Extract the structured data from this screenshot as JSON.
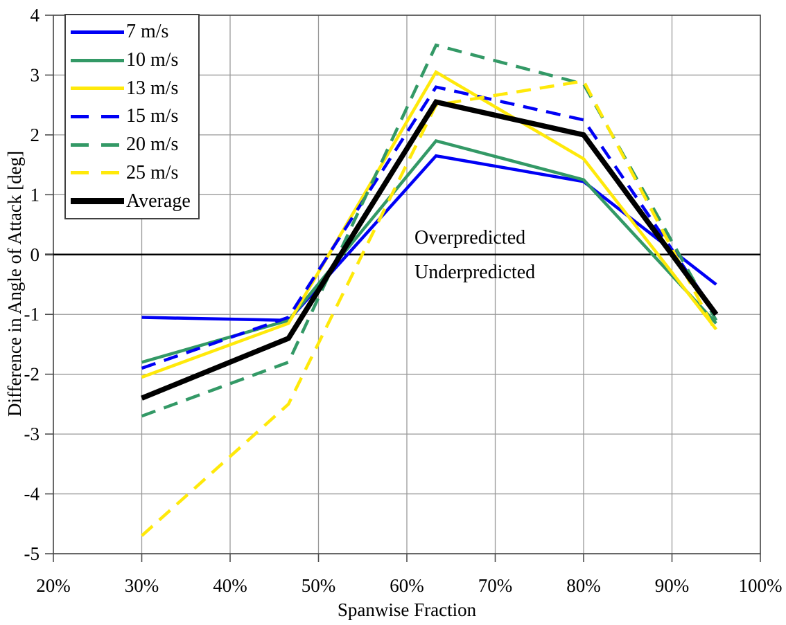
{
  "chart_data": {
    "type": "line",
    "title": "",
    "xlabel": "Spanwise Fraction",
    "ylabel": "Difference in Angle of Attack [deg]",
    "xlim": [
      20,
      100
    ],
    "ylim": [
      -5,
      4
    ],
    "grid": true,
    "legend_position": "top-left",
    "x": [
      30,
      46.6,
      63.3,
      80,
      95
    ],
    "x_ticks": [
      {
        "v": 20,
        "label": "20%"
      },
      {
        "v": 30,
        "label": "30%"
      },
      {
        "v": 40,
        "label": "40%"
      },
      {
        "v": 50,
        "label": "50%"
      },
      {
        "v": 60,
        "label": "60%"
      },
      {
        "v": 70,
        "label": "70%"
      },
      {
        "v": 80,
        "label": "80%"
      },
      {
        "v": 90,
        "label": "90%"
      },
      {
        "v": 100,
        "label": "100%"
      }
    ],
    "y_ticks": [
      {
        "v": 4,
        "label": "4"
      },
      {
        "v": 3,
        "label": "3"
      },
      {
        "v": 2,
        "label": "2"
      },
      {
        "v": 1,
        "label": "1"
      },
      {
        "v": 0,
        "label": "0"
      },
      {
        "v": -1,
        "label": "-1"
      },
      {
        "v": -2,
        "label": "-2"
      },
      {
        "v": -3,
        "label": "-3"
      },
      {
        "v": -4,
        "label": "-4"
      },
      {
        "v": -5,
        "label": "-5"
      }
    ],
    "series": [
      {
        "name": "7 m/s",
        "color": "#0000F5",
        "dash": "solid",
        "width": 4.5,
        "values": [
          -1.05,
          -1.1,
          1.65,
          1.22,
          -0.5
        ]
      },
      {
        "name": "10 m/s",
        "color": "#339966",
        "dash": "solid",
        "width": 4.5,
        "values": [
          -1.8,
          -1.1,
          1.9,
          1.25,
          -1.15
        ]
      },
      {
        "name": "13 m/s",
        "color": "#FFE90A",
        "dash": "solid",
        "width": 4.5,
        "values": [
          -2.05,
          -1.15,
          3.05,
          1.6,
          -1.25
        ]
      },
      {
        "name": "15 m/s",
        "color": "#0000F5",
        "dash": "dashed",
        "width": 4.5,
        "values": [
          -1.9,
          -1.05,
          2.8,
          2.25,
          -1.0
        ]
      },
      {
        "name": "20 m/s",
        "color": "#339966",
        "dash": "dashed",
        "width": 4.5,
        "values": [
          -2.7,
          -1.8,
          3.5,
          2.85,
          -1.1
        ]
      },
      {
        "name": "25 m/s",
        "color": "#FFE90A",
        "dash": "dashed",
        "width": 4.5,
        "values": [
          -4.7,
          -2.5,
          2.5,
          2.9,
          -1.3
        ]
      },
      {
        "name": "Average",
        "color": "#000000",
        "dash": "solid",
        "width": 7.5,
        "values": [
          -2.4,
          -1.4,
          2.55,
          2.0,
          -1.0
        ]
      }
    ],
    "zero_line": 0,
    "annotations": {
      "above": "Overpredicted",
      "below": "Underpredicted"
    },
    "colors": {
      "gridline": "#999999",
      "border": "#4d4d4d",
      "zero_line": "#000000",
      "background": "#ffffff"
    }
  }
}
